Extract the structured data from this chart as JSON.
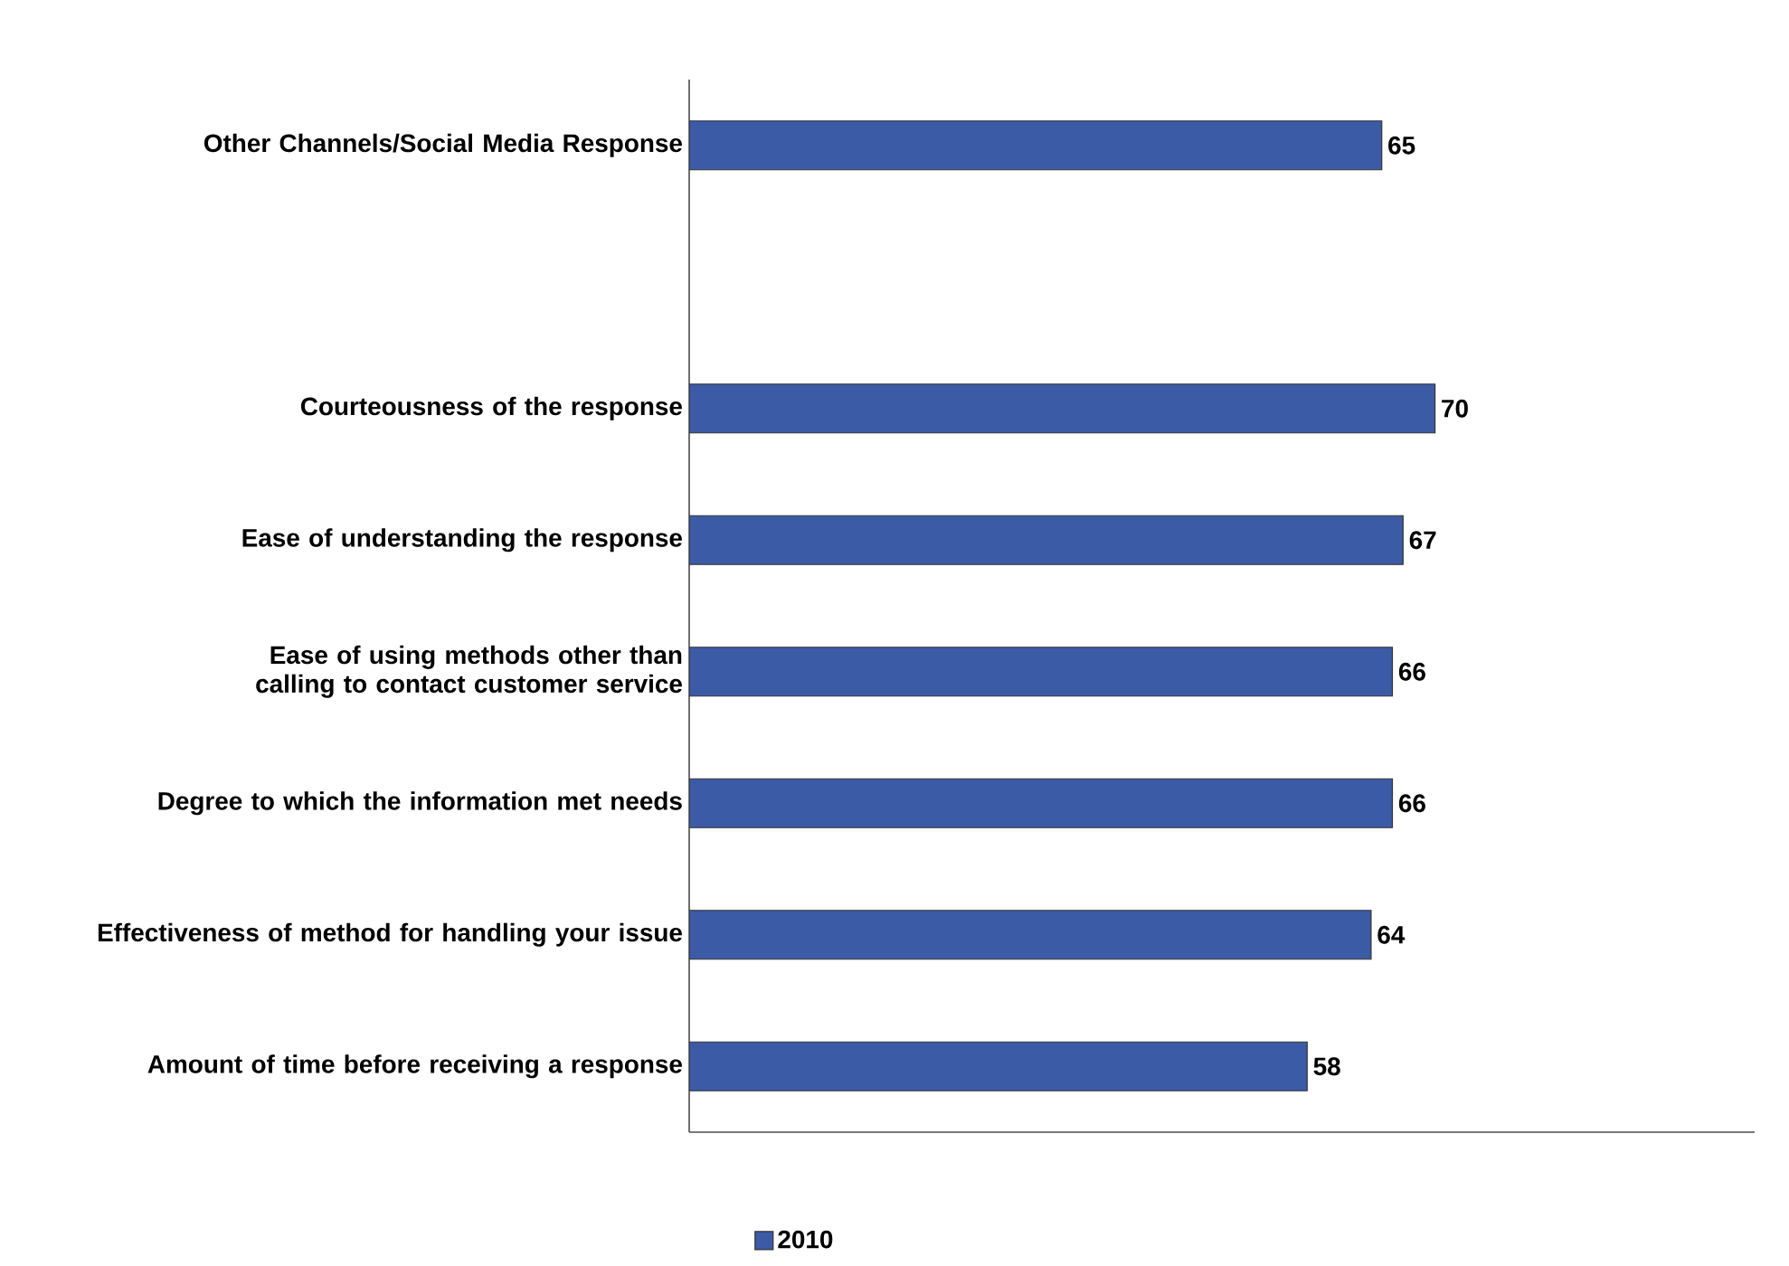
{
  "chart_data": {
    "type": "bar",
    "orientation": "horizontal",
    "categories": [
      "Other Channels/Social Media Response",
      null,
      "Courteousness of the response",
      "Ease of understanding the response",
      "Ease of using methods other than calling to contact customer service",
      "Degree to which the information met needs",
      "Effectiveness of method for handling your issue",
      "Amount of time before receiving a response"
    ],
    "series": [
      {
        "name": "2010",
        "color": "#3c5ba6",
        "values": [
          65,
          null,
          70,
          67,
          66,
          66,
          64,
          58
        ]
      }
    ],
    "xlim": [
      0,
      100
    ],
    "data_labels": true,
    "legend": "bottom",
    "tick_labels": "y"
  }
}
